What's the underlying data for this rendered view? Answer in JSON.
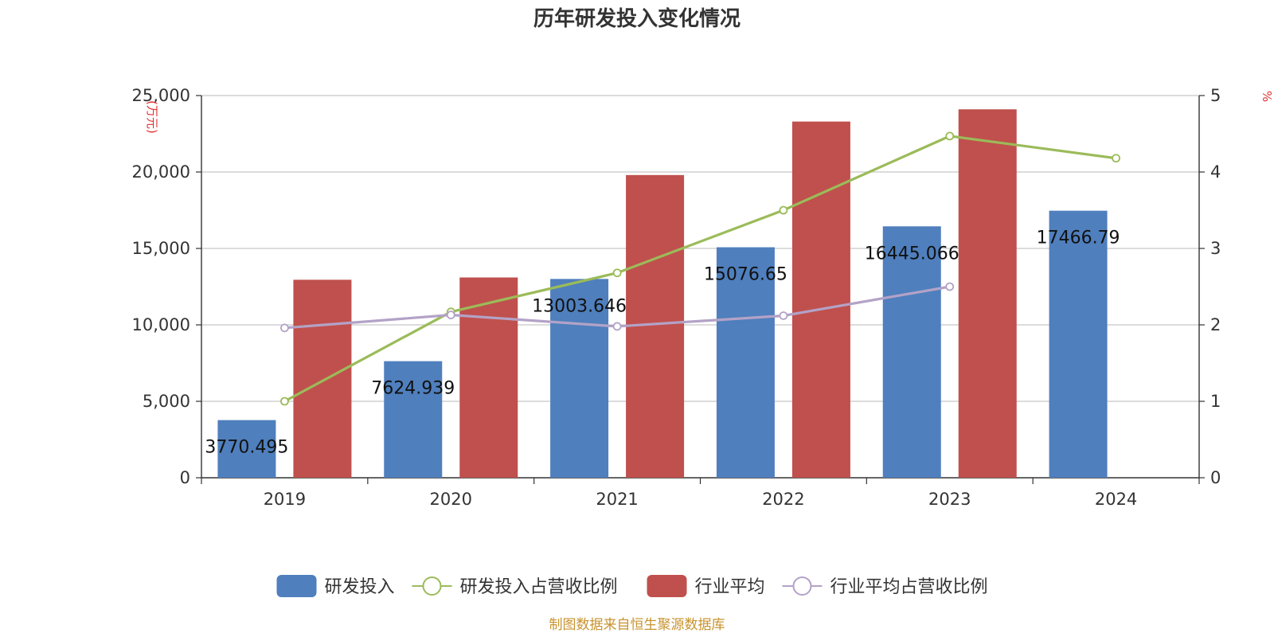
{
  "chart_data": {
    "type": "bar",
    "title": "历年研发投入变化情况",
    "categories": [
      "2019",
      "2020",
      "2021",
      "2022",
      "2023",
      "2024"
    ],
    "y_left": {
      "unit_label": "(万元)",
      "ylim": [
        0,
        25000
      ],
      "ticks": [
        0,
        5000,
        10000,
        15000,
        20000,
        25000
      ],
      "tick_labels": [
        "0",
        "5,000",
        "10,000",
        "15,000",
        "20,000",
        "25,000"
      ]
    },
    "y_right": {
      "unit_label": "%",
      "ylim": [
        0,
        5
      ],
      "ticks": [
        0,
        1,
        2,
        3,
        4,
        5
      ],
      "tick_labels": [
        "0",
        "1",
        "2",
        "3",
        "4",
        "5"
      ]
    },
    "grid": true,
    "series": [
      {
        "name": "研发投入",
        "type": "bar",
        "axis": "left",
        "color": "#4f7fbd",
        "values": [
          3770.495,
          7624.939,
          13003.646,
          15076.65,
          16445.066,
          17466.79
        ],
        "labels": [
          "3770.495",
          "7624.939",
          "13003.646",
          "15076.65",
          "16445.066",
          "17466.79"
        ]
      },
      {
        "name": "研发投入占营收比例",
        "type": "line",
        "axis": "right",
        "color": "#9bbb59",
        "values": [
          1.0,
          2.17,
          2.68,
          3.5,
          4.47,
          4.18
        ]
      },
      {
        "name": "行业平均",
        "type": "bar",
        "axis": "left",
        "color": "#c0504d",
        "values": [
          12950,
          13100,
          19800,
          23300,
          24100,
          null
        ]
      },
      {
        "name": "行业平均占营收比例",
        "type": "line",
        "axis": "right",
        "color": "#b3a2c7",
        "values": [
          1.96,
          2.13,
          1.98,
          2.12,
          2.5,
          null
        ]
      }
    ],
    "legend_position": "bottom",
    "source": "制图数据来自恒生聚源数据库"
  }
}
